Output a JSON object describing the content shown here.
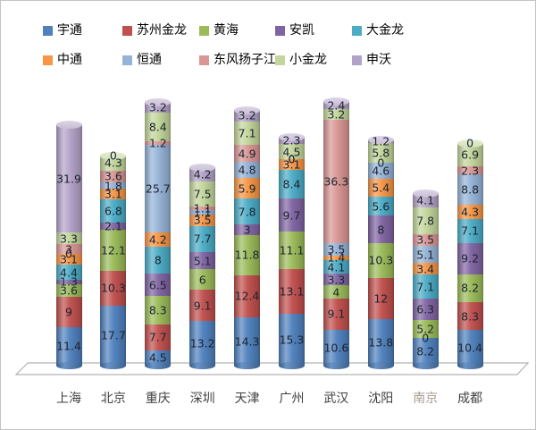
{
  "chart_data": {
    "type": "bar",
    "variant": "stacked-cylinder-3d",
    "title": "",
    "xlabel": "",
    "ylabel": "",
    "grid": false,
    "legend_position": "top",
    "value_labels_shown": true,
    "categories": [
      "上海",
      "北京",
      "重庆",
      "深圳",
      "天津",
      "广州",
      "武汉",
      "沈阳",
      "南京",
      "成都"
    ],
    "muted_category": "南京",
    "series": [
      {
        "name": "宇通",
        "color": "#4F81BD",
        "values": [
          11.4,
          17.7,
          4.5,
          13.2,
          14.3,
          15.3,
          10.6,
          13.8,
          8.2,
          10.4
        ]
      },
      {
        "name": "苏州金龙",
        "color": "#C0504D",
        "values": [
          9,
          10.3,
          7.7,
          9.1,
          12.4,
          13.1,
          9.1,
          12,
          0,
          8.3
        ]
      },
      {
        "name": "黄海",
        "color": "#9BBB59",
        "values": [
          3.6,
          12.1,
          8.3,
          6,
          11.8,
          11.1,
          4,
          10.3,
          5.2,
          8.2
        ]
      },
      {
        "name": "安凯",
        "color": "#8064A2",
        "values": [
          1.3,
          2.1,
          6.5,
          5.1,
          3,
          9.7,
          3.3,
          8,
          6.3,
          9.2
        ]
      },
      {
        "name": "大金龙",
        "color": "#4BACC6",
        "values": [
          4.4,
          6.8,
          8,
          7.7,
          7.8,
          8.4,
          4.1,
          5.6,
          7.1,
          7.1
        ]
      },
      {
        "name": "中通",
        "color": "#F79646",
        "values": [
          3.1,
          3.1,
          4.2,
          3.5,
          5.9,
          3.1,
          1.4,
          5.4,
          3.4,
          4.3
        ]
      },
      {
        "name": "恒通",
        "color": "#95B3D7",
        "values": [
          0,
          1.8,
          25.7,
          1.1,
          4.8,
          0,
          3.5,
          4.6,
          5.1,
          8.8
        ]
      },
      {
        "name": "东风扬子江",
        "color": "#D99694",
        "values": [
          3,
          3.6,
          1.2,
          1.1,
          4.9,
          0,
          36.3,
          0,
          3.5,
          2.3
        ]
      },
      {
        "name": "小金龙",
        "color": "#C3D69B",
        "values": [
          3.3,
          4.3,
          8.4,
          7.5,
          7.1,
          4.5,
          3.2,
          5.8,
          7.8,
          6.9
        ]
      },
      {
        "name": "申沃",
        "color": "#B3A2C7",
        "values": [
          31.9,
          0,
          3.2,
          4.2,
          3.2,
          2.3,
          2.4,
          1.2,
          4.1,
          0
        ]
      }
    ],
    "colors": {
      "value_label": "#1c2430",
      "axis_label": "#3f3f3f",
      "muted_axis_label": "#a89a8c",
      "floor_line": "#b3b3b3",
      "frame_border": "#c3c3c3"
    }
  }
}
